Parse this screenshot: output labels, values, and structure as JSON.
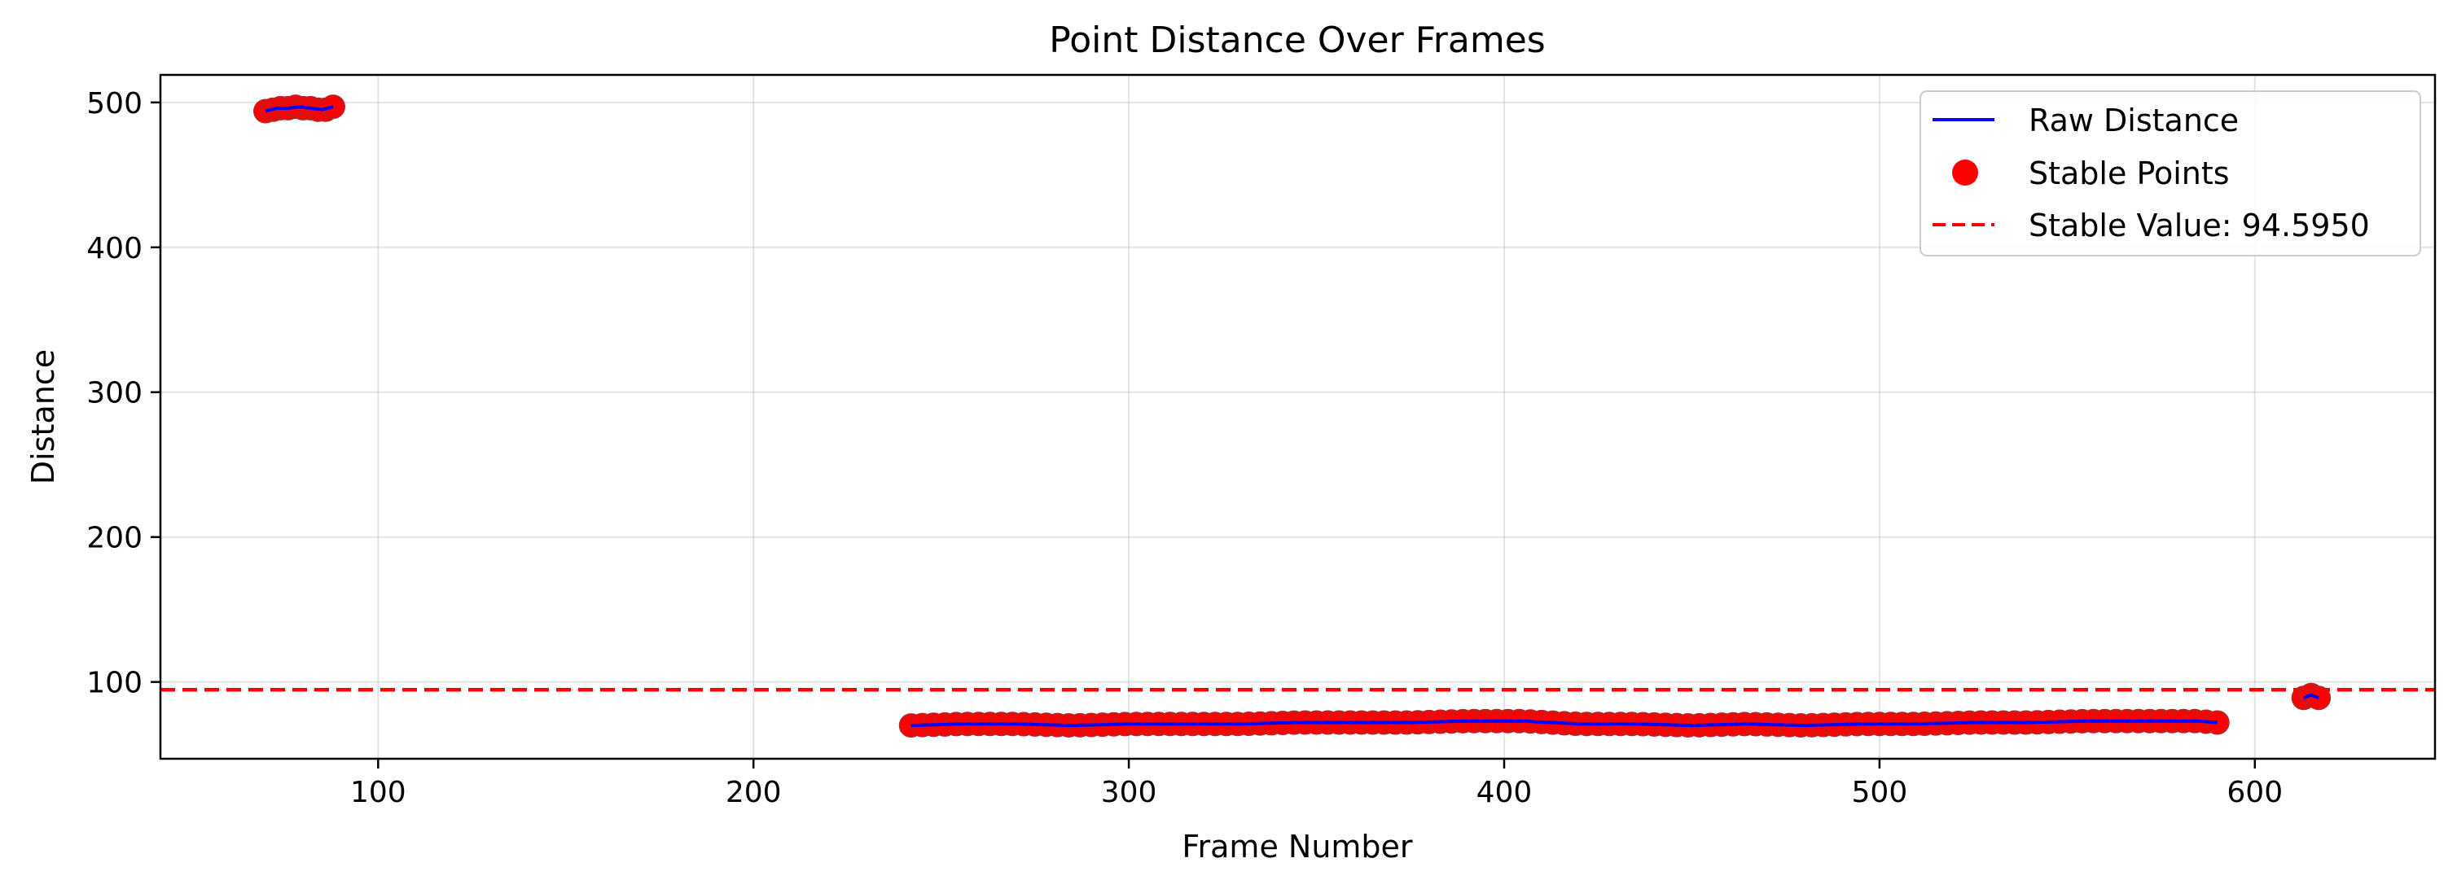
{
  "chart_data": {
    "type": "line",
    "title": "Point Distance Over Frames",
    "xlabel": "Frame Number",
    "ylabel": "Distance",
    "xlim": [
      42,
      648
    ],
    "ylim": [
      47,
      519
    ],
    "xticks": [
      100,
      200,
      300,
      400,
      500,
      600
    ],
    "yticks": [
      100,
      200,
      300,
      400,
      500
    ],
    "grid": true,
    "legend_position": "top-right",
    "series": [
      {
        "name": "Raw Distance",
        "kind": "line",
        "color": "#0000ff",
        "segments": [
          {
            "x": [
              70,
              73,
              76,
              79,
              82,
              85,
              88
            ],
            "y": [
              494,
              496,
              496,
              497,
              496,
              495,
              497
            ]
          },
          {
            "x": [
              242,
              255,
              270,
              285,
              300,
              315,
              330,
              345,
              360,
              375,
              390,
              405,
              420,
              435,
              450,
              465,
              480,
              495,
              510,
              525,
              540,
              555,
              570,
              585,
              590
            ],
            "y": [
              70,
              71,
              71,
              70,
              71,
              71,
              71,
              72,
              72,
              72,
              73,
              73,
              71,
              71,
              70,
              71,
              70,
              71,
              71,
              72,
              72,
              73,
              73,
              73,
              72
            ]
          },
          {
            "x": [
              613,
              615,
              617
            ],
            "y": [
              89,
              91,
              89
            ]
          }
        ]
      },
      {
        "name": "Stable Points",
        "kind": "scatter",
        "color": "#ff0000",
        "segments": [
          {
            "x": [
              70,
              72,
              74,
              76,
              78,
              80,
              82,
              84,
              86,
              88
            ],
            "y": [
              494,
              495,
              496,
              496,
              497,
              496,
              496,
              495,
              495,
              497
            ]
          },
          {
            "x_start": 242,
            "x_end": 590,
            "x_step": 3,
            "y_profile_x": [
              242,
              255,
              270,
              285,
              300,
              315,
              330,
              345,
              360,
              375,
              390,
              405,
              420,
              435,
              450,
              465,
              480,
              495,
              510,
              525,
              540,
              555,
              570,
              585,
              590
            ],
            "y_profile_y": [
              70,
              71,
              71,
              70,
              71,
              71,
              71,
              72,
              72,
              72,
              73,
              73,
              71,
              71,
              70,
              71,
              70,
              71,
              71,
              72,
              72,
              73,
              73,
              73,
              72
            ]
          },
          {
            "x": [
              613,
              615,
              617
            ],
            "y": [
              89,
              91,
              89
            ]
          }
        ]
      },
      {
        "name": "Stable Value: 94.5950",
        "kind": "hline",
        "color": "#ff0000",
        "y": 94.595
      }
    ]
  }
}
